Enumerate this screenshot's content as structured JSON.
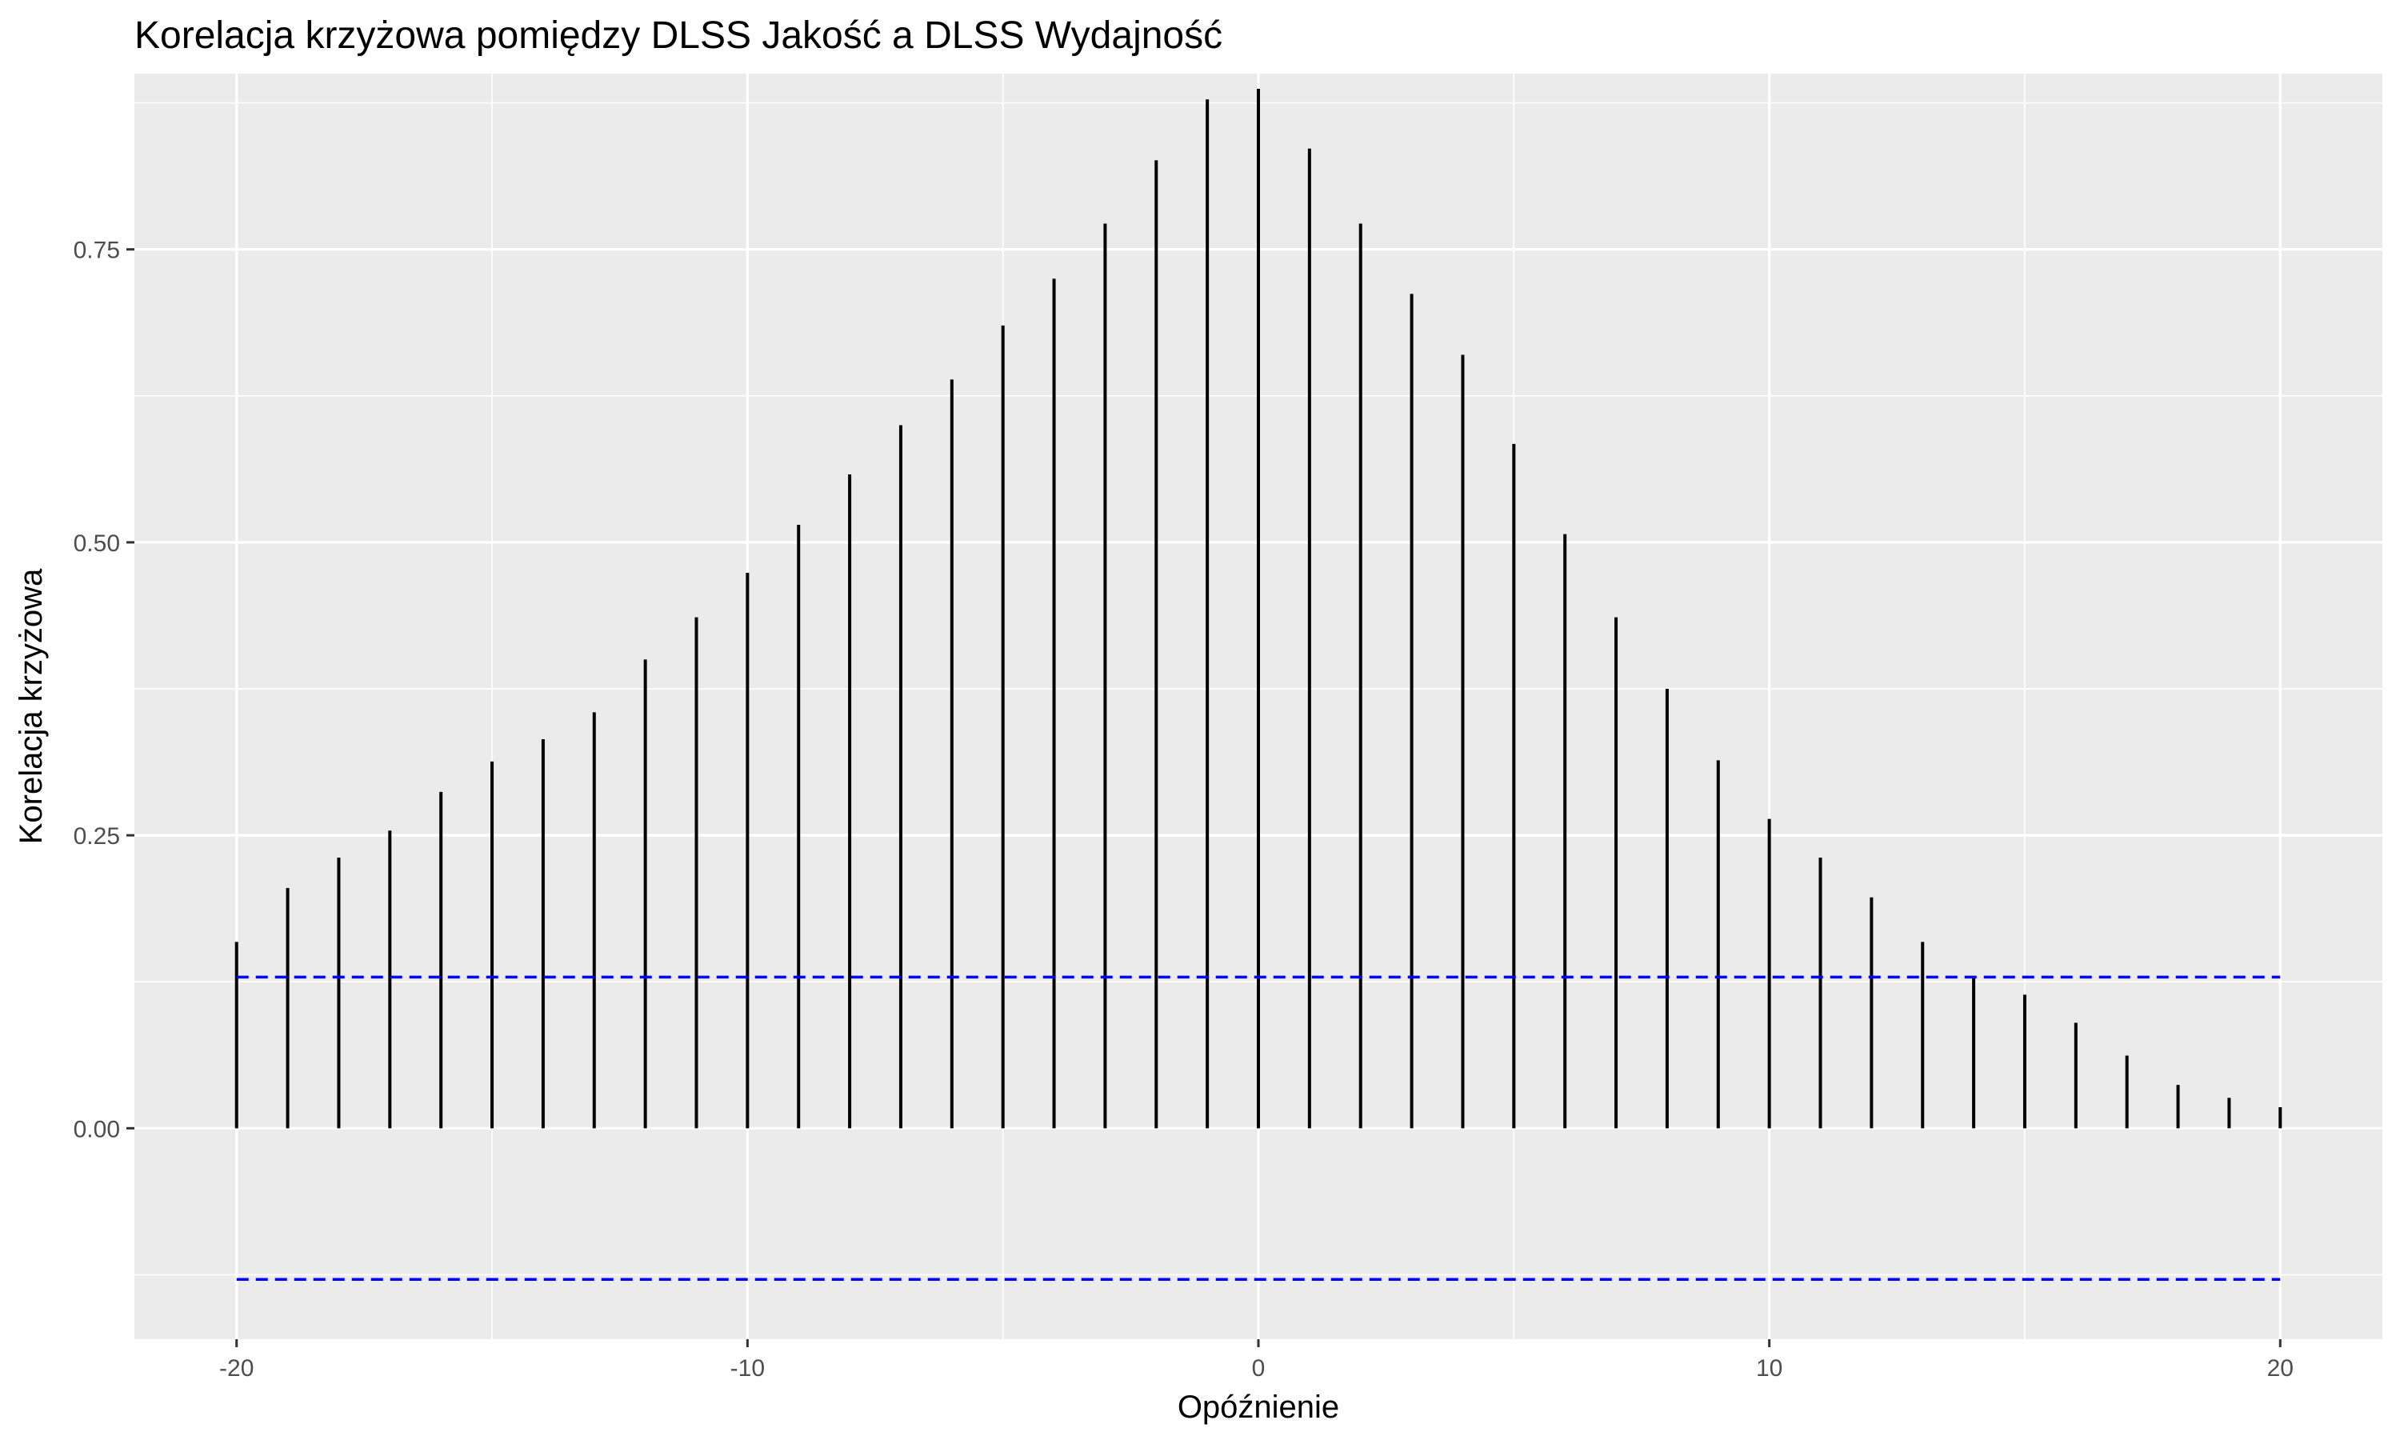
{
  "chart_data": {
    "type": "bar",
    "title": "Korelacja krzyżowa pomiędzy DLSS Jakość a DLSS Wydajność",
    "xlabel": "Opóźnienie",
    "ylabel": "Korelacja krzyżowa",
    "xlim": [
      -22,
      22
    ],
    "ylim": [
      -0.18,
      0.9
    ],
    "x_ticks": [
      -20,
      -10,
      0,
      10,
      20
    ],
    "x_tick_labels": [
      "-20",
      "-10",
      "0",
      "10",
      "20"
    ],
    "y_ticks": [
      0,
      0.25,
      0.5,
      0.75
    ],
    "y_tick_labels": [
      "0.00",
      "0.25",
      "0.50",
      "0.75"
    ],
    "grid": true,
    "x": [
      -20,
      -19,
      -18,
      -17,
      -16,
      -15,
      -14,
      -13,
      -12,
      -11,
      -10,
      -9,
      -8,
      -7,
      -6,
      -5,
      -4,
      -3,
      -2,
      -1,
      0,
      1,
      2,
      3,
      4,
      5,
      6,
      7,
      8,
      9,
      10,
      11,
      12,
      13,
      14,
      15,
      16,
      17,
      18,
      19,
      20
    ],
    "values": [
      0.159,
      0.205,
      0.231,
      0.254,
      0.287,
      0.313,
      0.332,
      0.355,
      0.4,
      0.436,
      0.474,
      0.515,
      0.558,
      0.6,
      0.639,
      0.685,
      0.725,
      0.772,
      0.826,
      0.878,
      0.887,
      0.836,
      0.772,
      0.712,
      0.66,
      0.584,
      0.507,
      0.436,
      0.375,
      0.314,
      0.264,
      0.231,
      0.197,
      0.159,
      0.13,
      0.114,
      0.09,
      0.062,
      0.037,
      0.026,
      0.018
    ],
    "confidence_bounds": [
      0.129,
      -0.129
    ],
    "colors": {
      "panel": "#ebebeb",
      "grid": "#ffffff",
      "bars": "#000000",
      "bounds": "#0000ff"
    }
  }
}
